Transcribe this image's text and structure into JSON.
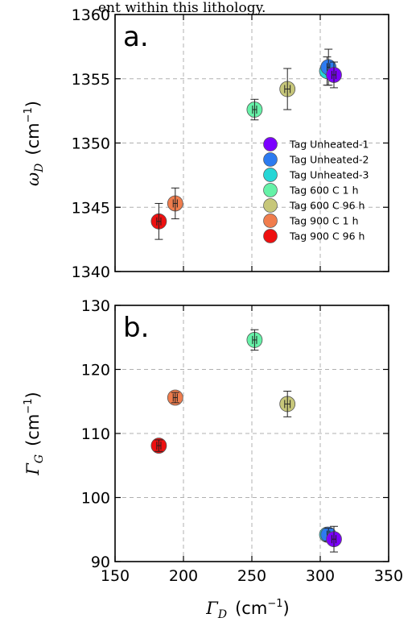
{
  "caption": "ent within this lithology.",
  "chart_data": [
    {
      "type": "scatter",
      "panel_label": "a.",
      "ylabel": "ω_D  (cm⁻¹)",
      "ylabel_symbol": "ω",
      "ylabel_sub": "D",
      "ylabel_unit": "(cm",
      "ylabel_exp": "−1",
      "ylabel_close": ")",
      "xlim": [
        150,
        350
      ],
      "ylim": [
        1340,
        1360
      ],
      "xticks": [
        150,
        200,
        250,
        300,
        350
      ],
      "yticks": [
        1340,
        1345,
        1350,
        1355,
        1360
      ],
      "ytick_labels": [
        "1340",
        "1345",
        "1350",
        "1355",
        "1360"
      ],
      "grid": true,
      "legend_position": "lower-right",
      "series": [
        {
          "name": "Tag Unheated-1",
          "color": "#7b00ff",
          "x": 310,
          "y": 1355.3,
          "yerr": 1.0,
          "xerr": 1.5
        },
        {
          "name": "Tag Unheated-2",
          "color": "#2c7bf0",
          "x": 306,
          "y": 1355.9,
          "yerr": 1.4,
          "xerr": 1.0
        },
        {
          "name": "Tag Unheated-3",
          "color": "#26d6d6",
          "x": 305,
          "y": 1355.6,
          "yerr": 1.1,
          "xerr": 1.0
        },
        {
          "name": "Tag 600 C 1 h",
          "color": "#66f2a8",
          "x": 252,
          "y": 1352.6,
          "yerr": 0.8,
          "xerr": 1.5
        },
        {
          "name": "Tag 600 C 96 h",
          "color": "#c7c77a",
          "x": 276,
          "y": 1354.2,
          "yerr": 1.6,
          "xerr": 2.0
        },
        {
          "name": "Tag 900 C 1 h",
          "color": "#f07d4d",
          "x": 194,
          "y": 1345.3,
          "yerr": 1.2,
          "xerr": 1.5
        },
        {
          "name": "Tag 900 C 96 h",
          "color": "#ee1010",
          "x": 182,
          "y": 1343.9,
          "yerr": 1.4,
          "xerr": 1.5
        }
      ]
    },
    {
      "type": "scatter",
      "panel_label": "b.",
      "xlabel": "Γ_D  (cm⁻¹)",
      "xlabel_symbol": "Γ",
      "xlabel_sub": "D",
      "xlabel_unit": "(cm",
      "xlabel_exp": "−1",
      "xlabel_close": ")",
      "ylabel": "Γ_G  (cm⁻¹)",
      "ylabel_symbol": "Γ",
      "ylabel_sub": "G",
      "ylabel_unit": "(cm",
      "ylabel_exp": "−1",
      "ylabel_close": ")",
      "xlim": [
        150,
        350
      ],
      "ylim": [
        90,
        130
      ],
      "xticks": [
        150,
        200,
        250,
        300,
        350
      ],
      "xtick_labels": [
        "150",
        "200",
        "250",
        "300",
        "350"
      ],
      "yticks": [
        90,
        100,
        110,
        120,
        130
      ],
      "ytick_labels": [
        "90",
        "100",
        "110",
        "120",
        "130"
      ],
      "grid": true,
      "series": [
        {
          "name": "Tag Unheated-1",
          "color": "#7b00ff",
          "x": 310,
          "y": 93.5,
          "yerr": 2.0,
          "xerr": 1.5
        },
        {
          "name": "Tag Unheated-2",
          "color": "#2c7bf0",
          "x": 306,
          "y": 94.2,
          "yerr": 1.0,
          "xerr": 1.0
        },
        {
          "name": "Tag Unheated-3",
          "color": "#26d6d6",
          "x": 305,
          "y": 94.2,
          "yerr": 0.8,
          "xerr": 1.0
        },
        {
          "name": "Tag 600 C 1 h",
          "color": "#66f2a8",
          "x": 252,
          "y": 124.6,
          "yerr": 1.6,
          "xerr": 1.5
        },
        {
          "name": "Tag 600 C 96 h",
          "color": "#c7c77a",
          "x": 276,
          "y": 114.6,
          "yerr": 2.0,
          "xerr": 2.0
        },
        {
          "name": "Tag 900 C 1 h",
          "color": "#f07d4d",
          "x": 194,
          "y": 115.6,
          "yerr": 0.8,
          "xerr": 1.5
        },
        {
          "name": "Tag 900 C 96 h",
          "color": "#ee1010",
          "x": 182,
          "y": 108.1,
          "yerr": 0.9,
          "xerr": 1.5
        }
      ]
    }
  ]
}
